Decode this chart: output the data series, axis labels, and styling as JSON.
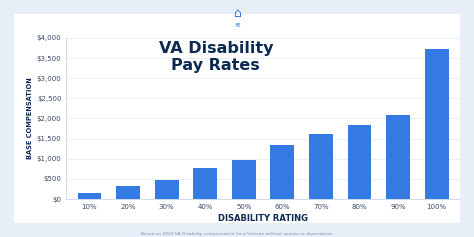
{
  "categories": [
    "10%",
    "20%",
    "30%",
    "40%",
    "50%",
    "60%",
    "70%",
    "80%",
    "90%",
    "100%"
  ],
  "values": [
    152,
    327,
    467,
    762,
    962,
    1338,
    1621,
    1841,
    2096,
    3737
  ],
  "bar_color": "#3579E3",
  "background_color": "#E8EEF8",
  "chart_bg": "#FFFFFF",
  "title_line1": "VA Disability",
  "title_line2": "Pay Rates",
  "title_color": "#0d2a52",
  "xlabel": "DISABILITY RATING",
  "ylabel": "BASE COMPENSATION",
  "axis_label_color": "#0d2a52",
  "tick_color": "#3a4a6b",
  "ytick_labels": [
    "$0",
    "$500",
    "$1,000",
    "$1,500",
    "$2,000",
    "$2,500",
    "$3,000",
    "$3,500",
    "$4,000"
  ],
  "ytick_values": [
    0,
    500,
    1000,
    1500,
    2000,
    2500,
    3000,
    3500,
    4000
  ],
  "ylim": [
    0,
    4000
  ],
  "footnote": "Based on 2023 VA Disability compensation for a Veteran without spouse or dependents.",
  "footnote_color": "#7a8aaa",
  "spine_color": "#c8d4e8",
  "grid_color": "#e0e8f4"
}
